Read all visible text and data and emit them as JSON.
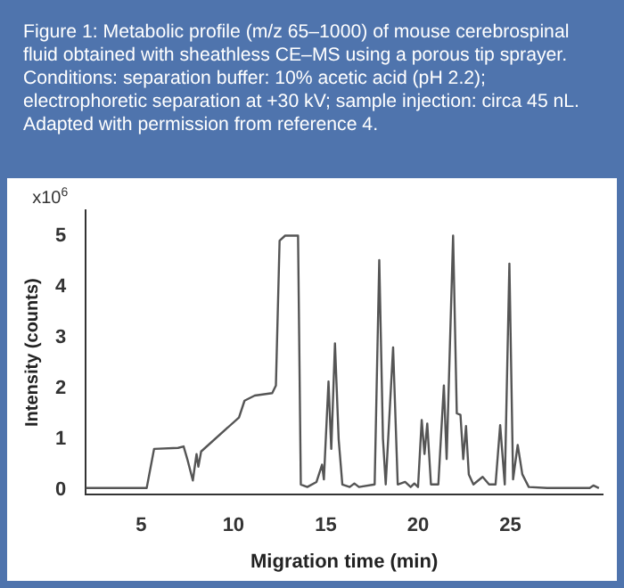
{
  "chart_data": {
    "type": "line",
    "title": "Figure 1: Metabolic profile (m/z 65–1000) of mouse cerebrospinal fluid obtained with sheathless CE–MS using a porous tip sprayer. Conditions: separation buffer: 10% acetic acid (pH 2.2); electrophoretic separation at +30 kV; sample injection: circa 45 nL. Adapted with permission from reference 4.",
    "xlabel": "Migration time (min)",
    "ylabel": "Intensity (counts)",
    "annotations": [
      "x10$^{6}$"
    ],
    "x": [
      2.0,
      5.3,
      5.7,
      7.0,
      7.3,
      7.5,
      7.8,
      8.0,
      8.1,
      8.25,
      10.3,
      10.6,
      11.15,
      12.1,
      12.3,
      12.5,
      12.8,
      13.5,
      13.65,
      14.0,
      14.5,
      14.8,
      14.9,
      15.15,
      15.3,
      15.5,
      15.7,
      15.9,
      16.3,
      16.55,
      16.8,
      17.65,
      17.9,
      18.1,
      18.25,
      18.65,
      18.9,
      19.3,
      19.6,
      19.8,
      20.0,
      20.2,
      20.35,
      20.5,
      20.7,
      21.1,
      21.4,
      21.55,
      21.9,
      22.1,
      22.3,
      22.45,
      22.6,
      22.75,
      23.0,
      23.5,
      23.85,
      24.2,
      24.45,
      24.7,
      24.95,
      25.15,
      25.4,
      25.65,
      26.0,
      27.0,
      28.0,
      29.3,
      29.5,
      29.8
    ],
    "series": [
      {
        "color": "#555555",
        "values": [
          0.03,
          0.03,
          0.8,
          0.82,
          0.85,
          0.6,
          0.18,
          0.7,
          0.45,
          0.75,
          1.42,
          1.75,
          1.85,
          1.9,
          2.05,
          4.9,
          5.0,
          5.0,
          0.1,
          0.05,
          0.15,
          0.49,
          0.2,
          2.13,
          0.8,
          2.88,
          0.99,
          0.1,
          0.05,
          0.12,
          0.05,
          0.1,
          4.52,
          1.0,
          0.1,
          2.8,
          0.1,
          0.15,
          0.05,
          0.12,
          0.05,
          1.37,
          0.7,
          1.3,
          0.1,
          0.1,
          2.05,
          0.6,
          5.0,
          1.5,
          1.47,
          0.6,
          1.25,
          0.3,
          0.1,
          0.25,
          0.1,
          0.1,
          1.27,
          0.1,
          4.45,
          0.2,
          0.88,
          0.3,
          0.05,
          0.03,
          0.03,
          0.03,
          0.08,
          0.03
        ]
      }
    ],
    "xlim": [
      2,
      30
    ],
    "xticks": [
      5,
      10,
      15,
      20,
      25
    ],
    "ylim": [
      -0.1,
      5.5
    ],
    "yticks": [
      0,
      1,
      2,
      3,
      4,
      5
    ],
    "grid": false,
    "legend": false,
    "marker": "none",
    "line_style": "solid"
  }
}
